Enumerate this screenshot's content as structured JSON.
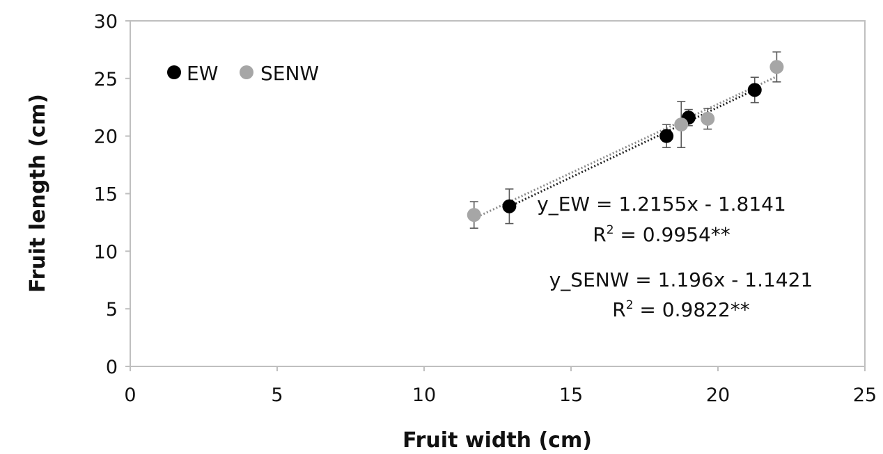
{
  "chart_data": {
    "type": "scatter",
    "title": "",
    "xlabel": "Fruit width (cm)",
    "ylabel": "Fruit length (cm)",
    "xlim": [
      0,
      25
    ],
    "ylim": [
      0,
      30
    ],
    "x_ticks": [
      "0",
      "5",
      "10",
      "15",
      "20",
      "25"
    ],
    "y_ticks": [
      "0",
      "5",
      "10",
      "15",
      "20",
      "25",
      "30"
    ],
    "grid": false,
    "legend_position": "top-left",
    "series": [
      {
        "name": "EW",
        "color": "#000000",
        "points": [
          {
            "x": 12.9,
            "y": 13.9,
            "err": 1.5
          },
          {
            "x": 18.25,
            "y": 20.0,
            "err": 1.0
          },
          {
            "x": 19.0,
            "y": 21.6,
            "err": 0.7
          },
          {
            "x": 21.25,
            "y": 24.0,
            "err": 1.1
          }
        ],
        "trendline": {
          "slope": 1.2155,
          "intercept": -1.8141,
          "x_from": 12.9,
          "x_to": 21.25,
          "color": "#222222"
        }
      },
      {
        "name": "SENW",
        "color": "#a6a6a6",
        "points": [
          {
            "x": 11.7,
            "y": 13.15,
            "err": 1.15
          },
          {
            "x": 18.75,
            "y": 21.0,
            "err": 2.0
          },
          {
            "x": 19.65,
            "y": 21.5,
            "err": 0.9
          },
          {
            "x": 22.0,
            "y": 26.0,
            "err": 1.3
          }
        ],
        "trendline": {
          "slope": 1.196,
          "intercept": -1.1421,
          "x_from": 11.7,
          "x_to": 22.0,
          "color": "#8c8c8c"
        }
      }
    ],
    "annotations": {
      "ew_equation": "y_EW = 1.2155x - 1.8141",
      "ew_r2_prefix": "R",
      "ew_r2_exp": "2",
      "ew_r2_value": " = 0.9954**",
      "senw_equation": "y_SENW = 1.196x - 1.1421",
      "senw_r2_prefix": "R",
      "senw_r2_exp": "2",
      "senw_r2_value": " = 0.9822**"
    }
  },
  "colors": {
    "axis": "#bfbfbf",
    "errorbar": "#595959"
  }
}
